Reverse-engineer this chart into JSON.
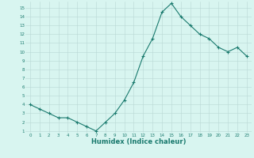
{
  "x": [
    0,
    1,
    2,
    3,
    4,
    5,
    6,
    7,
    8,
    9,
    10,
    11,
    12,
    13,
    14,
    15,
    16,
    17,
    18,
    19,
    20,
    21,
    22,
    23
  ],
  "y": [
    4.0,
    3.5,
    3.0,
    2.5,
    2.5,
    2.0,
    1.5,
    1.0,
    2.0,
    3.0,
    4.5,
    6.5,
    9.5,
    11.5,
    14.5,
    15.5,
    14.0,
    13.0,
    12.0,
    11.5,
    10.5,
    10.0,
    10.5,
    9.5
  ],
  "line_color": "#1a7a6e",
  "marker": "+",
  "marker_size": 3,
  "marker_linewidth": 0.8,
  "line_width": 0.8,
  "xlabel": "Humidex (Indice chaleur)",
  "xlabel_fontsize": 6,
  "bg_color": "#d8f5f0",
  "grid_color": "#b8d8d4",
  "tick_color": "#1a7a6e",
  "tick_fontsize": 4,
  "ylim": [
    0.8,
    15.7
  ],
  "xlim": [
    -0.5,
    23.5
  ],
  "yticks": [
    1,
    2,
    3,
    4,
    5,
    6,
    7,
    8,
    9,
    10,
    11,
    12,
    13,
    14,
    15
  ],
  "xticks": [
    0,
    1,
    2,
    3,
    4,
    5,
    6,
    7,
    8,
    9,
    10,
    11,
    12,
    13,
    14,
    15,
    16,
    17,
    18,
    19,
    20,
    21,
    22,
    23
  ]
}
